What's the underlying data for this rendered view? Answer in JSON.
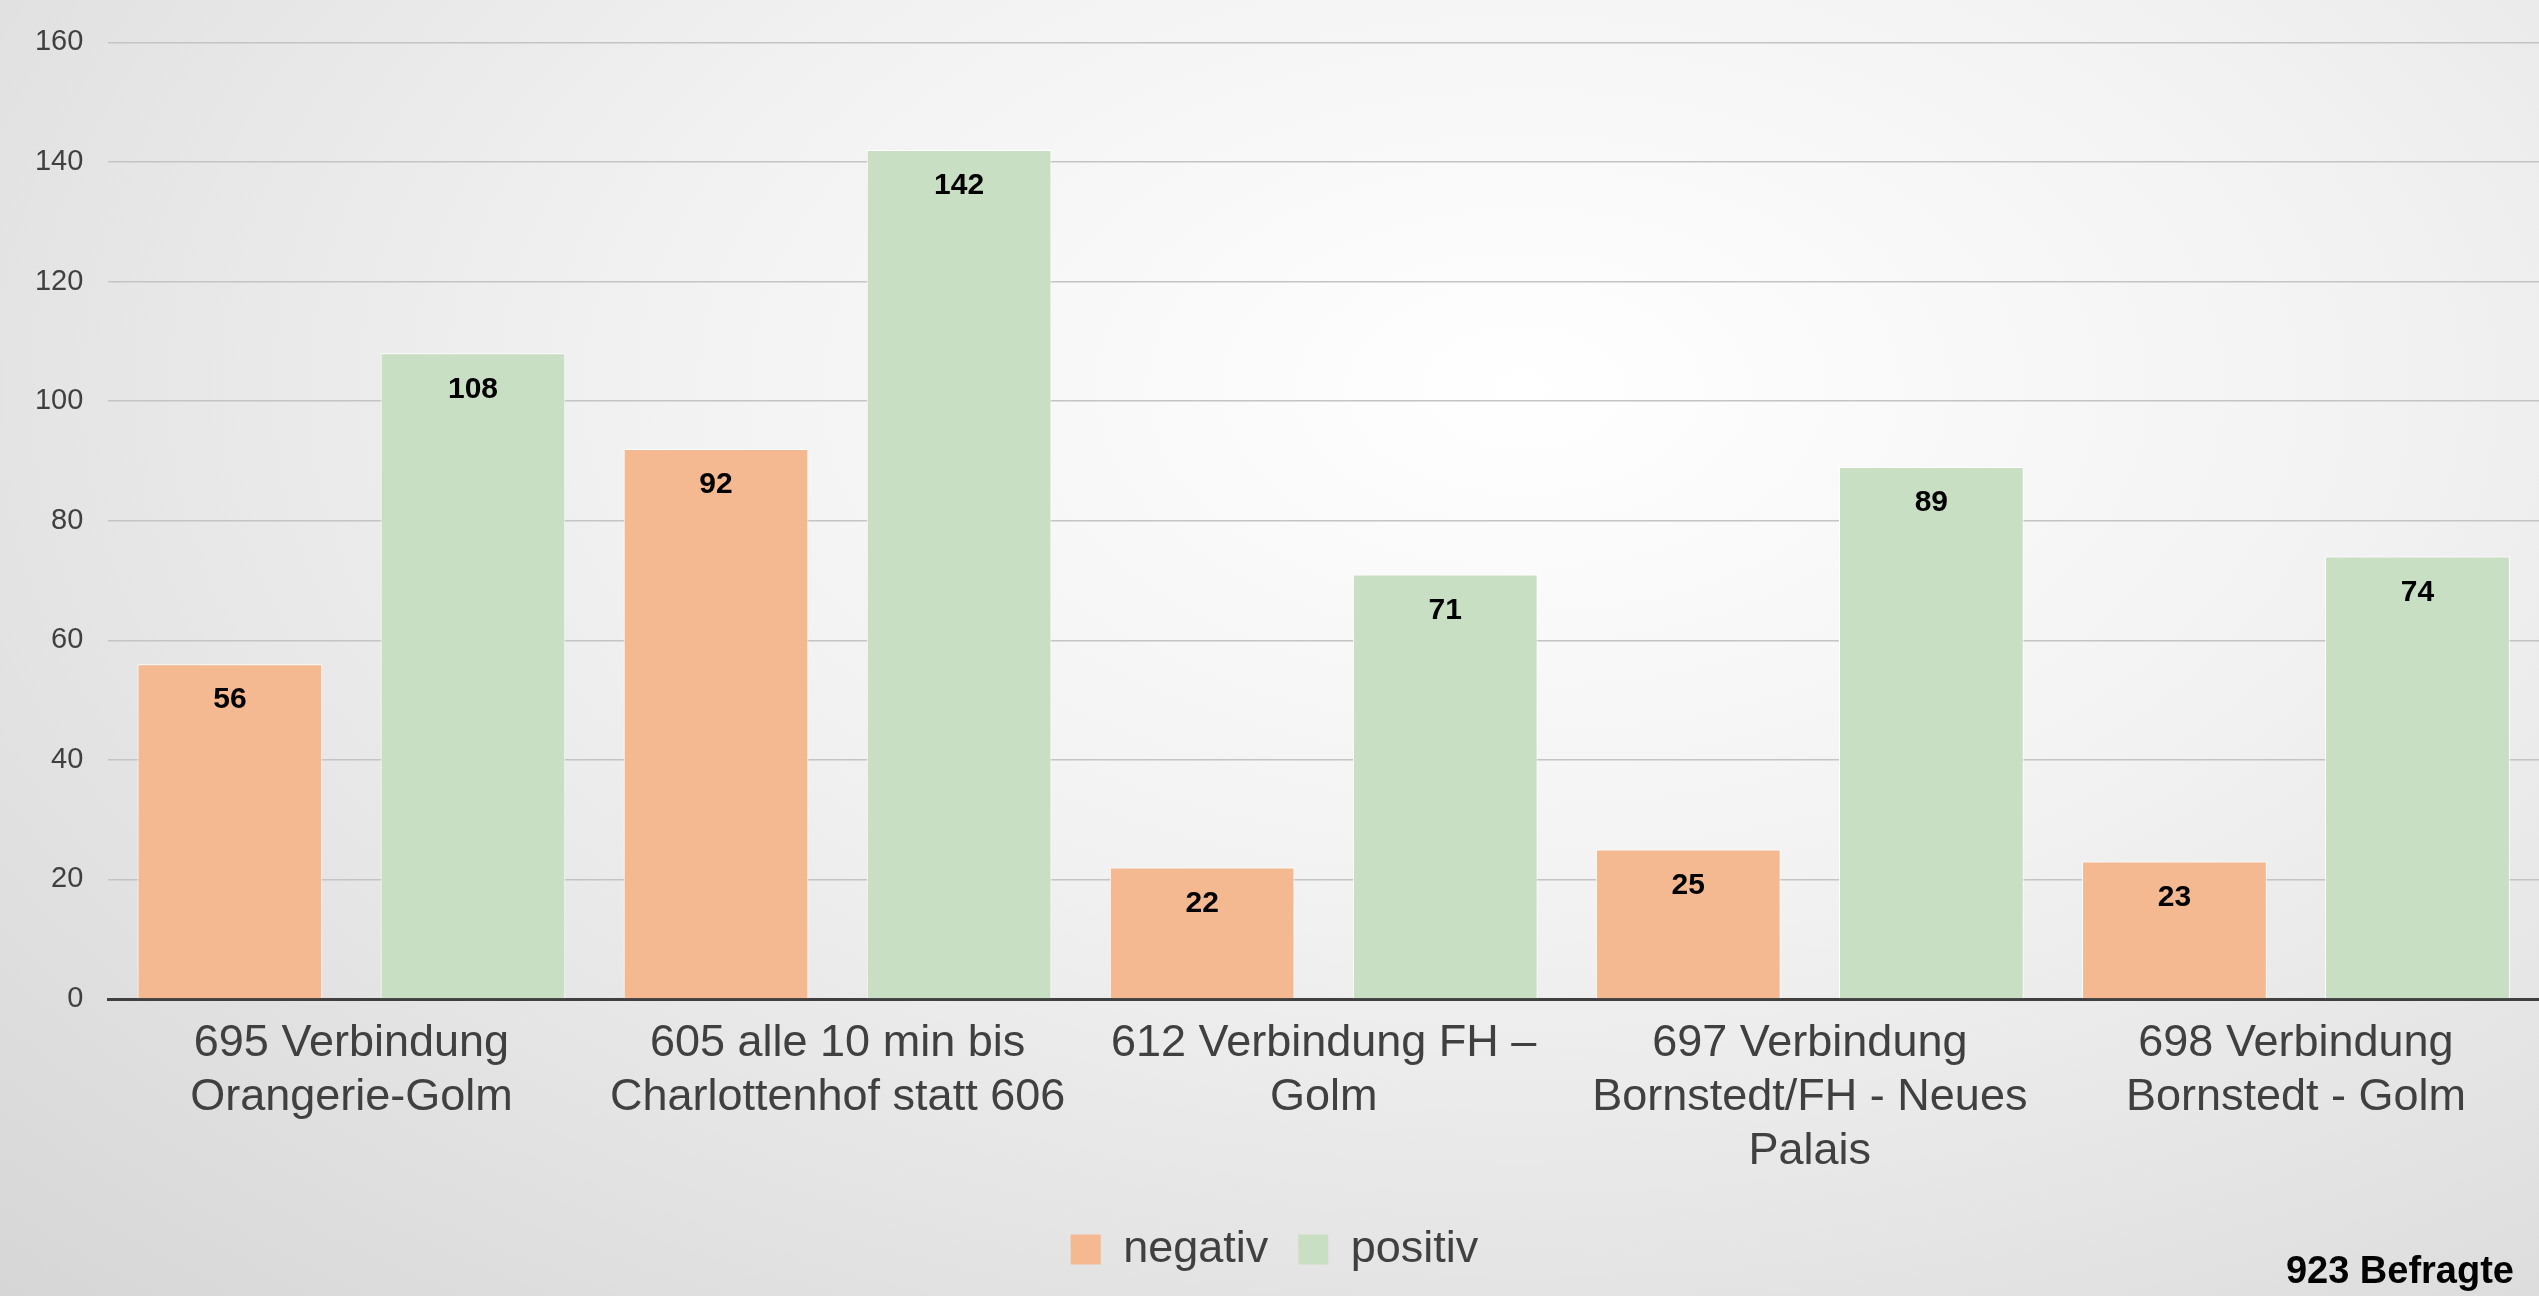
{
  "chart_data": {
    "type": "bar",
    "categories": [
      "695 Verbindung Orangerie-Golm",
      "605 alle 10 min bis Charlottenhof statt 606",
      "612 Verbindung FH – Golm",
      "697 Verbindung Bornstedt/FH - Neues Palais",
      "698 Verbindung Bornstedt - Golm"
    ],
    "series": [
      {
        "name": "negativ",
        "color": "#f4b990",
        "values": [
          56,
          92,
          22,
          25,
          23
        ]
      },
      {
        "name": "positiv",
        "color": "#c9dfc4",
        "values": [
          108,
          142,
          71,
          89,
          74
        ]
      }
    ],
    "ylim": [
      0,
      160
    ],
    "yticks": [
      0,
      20,
      40,
      60,
      80,
      100,
      120,
      140,
      160
    ],
    "grid": "y",
    "legend": "bottom",
    "data_labels": true,
    "annotations": [
      "923 Befragte"
    ]
  }
}
